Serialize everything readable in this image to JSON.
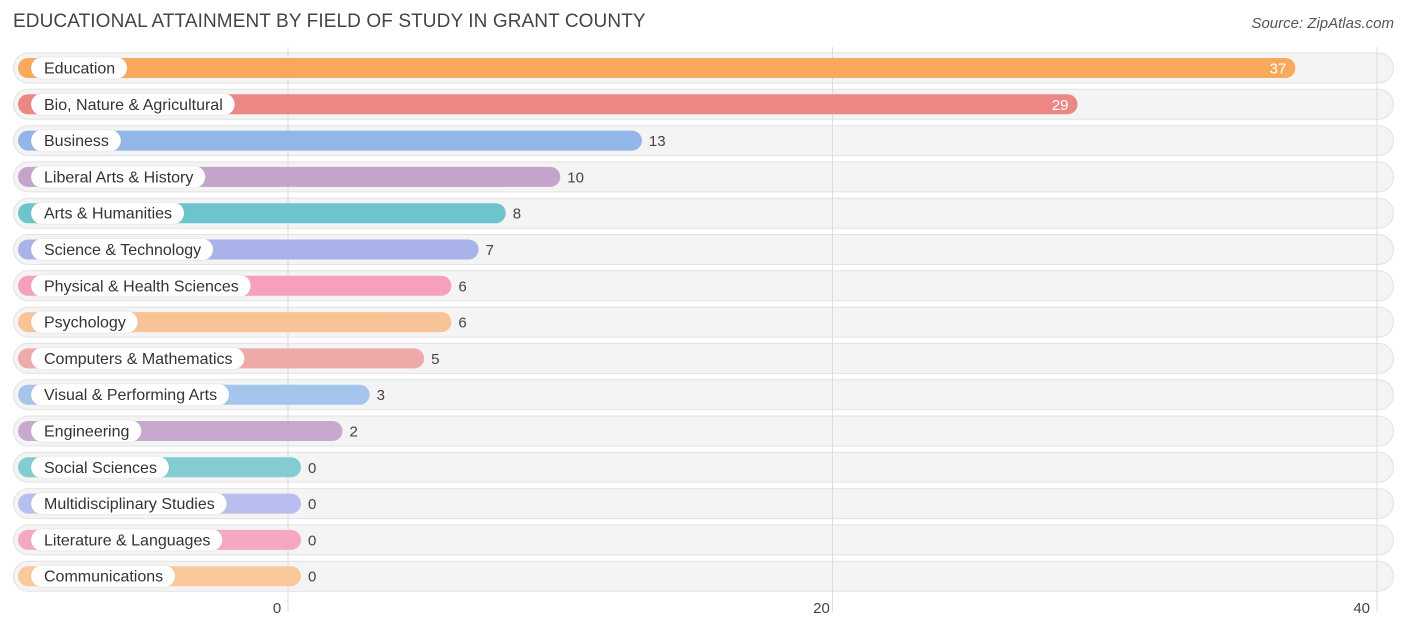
{
  "chart_data": {
    "type": "bar",
    "orientation": "horizontal",
    "title": "EDUCATIONAL ATTAINMENT BY FIELD OF STUDY IN GRANT COUNTY",
    "source": "Source: ZipAtlas.com",
    "xlim": [
      0,
      40
    ],
    "xticks": [
      0,
      20,
      40
    ],
    "categories": [
      "Education",
      "Bio, Nature & Agricultural",
      "Business",
      "Liberal Arts & History",
      "Arts & Humanities",
      "Science & Technology",
      "Physical & Health Sciences",
      "Psychology",
      "Computers & Mathematics",
      "Visual & Performing Arts",
      "Engineering",
      "Social Sciences",
      "Multidisciplinary Studies",
      "Literature & Languages",
      "Communications"
    ],
    "values": [
      37,
      29,
      13,
      10,
      8,
      7,
      6,
      6,
      5,
      3,
      2,
      0,
      0,
      0,
      0
    ],
    "colors": [
      "#f8a95c",
      "#ec8784",
      "#93b6e8",
      "#c5a4cc",
      "#6cc4cd",
      "#aab2ea",
      "#f6a0bd",
      "#f9c495",
      "#eeaaa8",
      "#a6c5ec",
      "#c9a8d0",
      "#82ccd2",
      "#b8bfee",
      "#f5a8c2",
      "#f9c99c"
    ]
  }
}
